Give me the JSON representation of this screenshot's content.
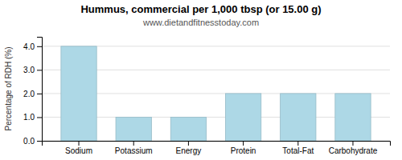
{
  "chart_data": {
    "type": "bar",
    "title": "Hummus, commercial per 1,000 tbsp (or 15.00 g)",
    "subtitle": "www.dietandfitnesstoday.com",
    "ylabel": "Percentage of RDH (%)",
    "categories": [
      "Sodium",
      "Potassium",
      "Energy",
      "Protein",
      "Total-Fat",
      "Carbohydrate"
    ],
    "values": [
      4.0,
      1.0,
      1.0,
      2.0,
      2.0,
      2.0
    ],
    "color": "#add8e6",
    "ylim": [
      0,
      4.4
    ],
    "yticks": [
      {
        "value": 0.0,
        "label": "0.0"
      },
      {
        "value": 1.0,
        "label": "1.0"
      },
      {
        "value": 2.0,
        "label": "2.0"
      },
      {
        "value": 3.0,
        "label": "3.0"
      },
      {
        "value": 4.0,
        "label": "4.0"
      }
    ],
    "grid": true
  }
}
